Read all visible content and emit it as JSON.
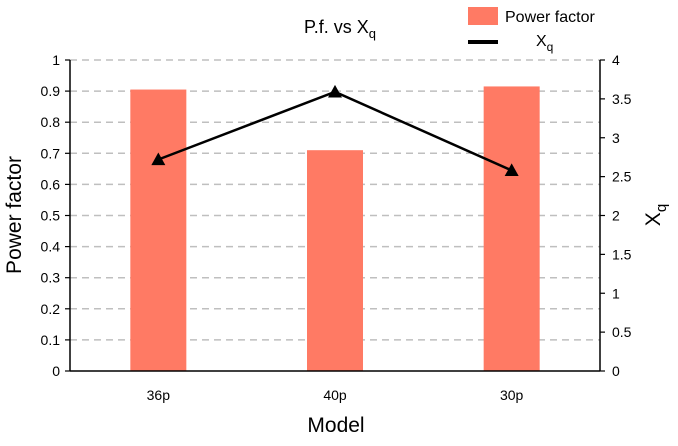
{
  "chart_data": {
    "type": "bar+line",
    "title": "P.f. vs X",
    "title_sub": "q",
    "xlabel": "Model",
    "ylabel_left": "Power factor",
    "ylabel_right": "X",
    "ylabel_right_sub": "q",
    "categories": [
      "36p",
      "40p",
      "30p"
    ],
    "series": [
      {
        "name": "Power factor",
        "kind": "bar",
        "axis": "left",
        "values": [
          0.905,
          0.71,
          0.915
        ],
        "color": "#ff7a64"
      },
      {
        "name": "X",
        "name_sub": "q",
        "kind": "line",
        "axis": "right",
        "marker": "triangle",
        "values": [
          2.72,
          3.59,
          2.58
        ],
        "color": "#000000"
      }
    ],
    "ylim_left": [
      0,
      1
    ],
    "yticks_left": [
      "0",
      "0.1",
      "0.2",
      "0.3",
      "0.4",
      "0.5",
      "0.6",
      "0.7",
      "0.8",
      "0.9",
      "1"
    ],
    "ylim_right": [
      0,
      4
    ],
    "yticks_right": [
      "0",
      "0.5",
      "1",
      "1.5",
      "2",
      "2.5",
      "3",
      "3.5",
      "4"
    ],
    "grid": "horizontal-dashed",
    "legend_position": "top-right"
  }
}
